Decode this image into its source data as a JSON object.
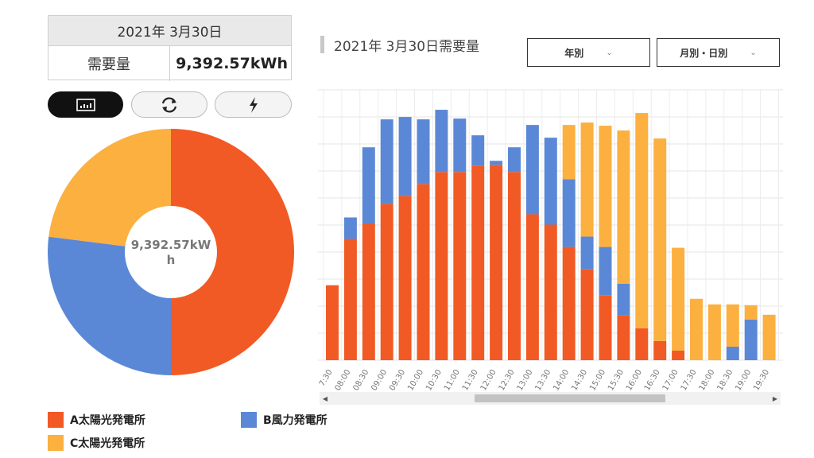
{
  "summary": {
    "date": "2021年 3月30日",
    "label": "需要量",
    "value": "9,392.57kWh"
  },
  "header": {
    "title": "2021年 3月30日需要量",
    "select_year": "年別",
    "select_period": "月別・日別"
  },
  "colors": {
    "A": "#f15a24",
    "B": "#5b88d6",
    "C": "#fbb040"
  },
  "legend": [
    {
      "name": "A太陽光発電所",
      "color": "#f15a24"
    },
    {
      "name": "B風力発電所",
      "color": "#5b88d6"
    },
    {
      "name": "C太陽光発電所",
      "color": "#fbb040"
    }
  ],
  "chart_data": [
    {
      "type": "pie",
      "center_label": "9,392.57kWh",
      "slices": [
        {
          "name": "A太陽光発電所",
          "value": 50
        },
        {
          "name": "B風力発電所",
          "value": 27
        },
        {
          "name": "C太陽光発電所",
          "value": 23
        }
      ]
    },
    {
      "type": "bar",
      "stacked": true,
      "title": "2021年 3月30日需要量",
      "categories": [
        "7:30",
        "08:00",
        "08:30",
        "09:00",
        "09:30",
        "10:00",
        "10:30",
        "11:00",
        "11:30",
        "12:00",
        "12:30",
        "13:00",
        "13:30",
        "14:00",
        "14:30",
        "15:00",
        "15:30",
        "16:00",
        "16:30",
        "17:00",
        "17:30",
        "18:00",
        "18:30",
        "19:00",
        "19:30"
      ],
      "series": [
        {
          "name": "A太陽光発電所",
          "values": [
            94,
            152,
            171,
            196,
            206,
            221,
            236,
            236,
            244,
            245,
            236,
            183,
            170,
            142,
            114,
            81,
            56,
            40,
            24,
            12,
            0,
            0,
            0,
            0,
            0
          ]
        },
        {
          "name": "B風力発電所",
          "values": [
            0,
            27,
            96,
            106,
            99,
            81,
            78,
            67,
            38,
            5,
            31,
            112,
            109,
            85,
            41,
            61,
            40,
            0,
            0,
            0,
            0,
            0,
            17,
            51,
            0
          ]
        },
        {
          "name": "C太陽光発電所",
          "values": [
            0,
            0,
            0,
            0,
            0,
            0,
            0,
            0,
            0,
            0,
            0,
            0,
            0,
            68,
            143,
            152,
            192,
            270,
            254,
            129,
            77,
            70,
            53,
            18,
            57
          ]
        }
      ],
      "ylim": [
        0,
        340
      ],
      "grid": true
    }
  ]
}
